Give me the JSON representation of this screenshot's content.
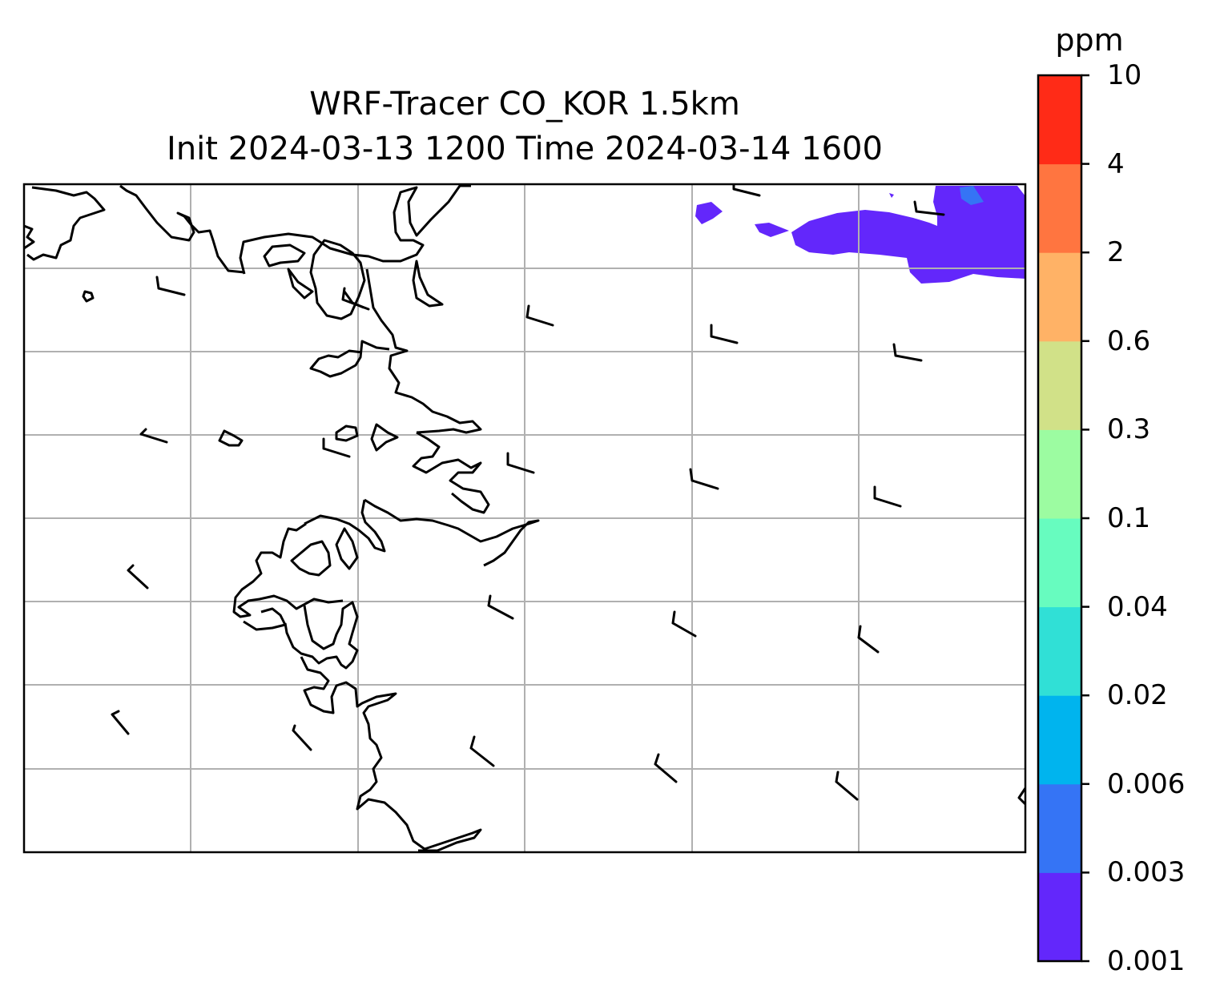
{
  "title": {
    "line1": "WRF-Tracer CO_KOR 1.5km",
    "line2": "Init 2024-03-13 1200 Time 2024-03-14 1600"
  },
  "colorbar": {
    "unit": "ppm",
    "levels": [
      "0.001",
      "0.003",
      "0.006",
      "0.02",
      "0.04",
      "0.1",
      "0.3",
      "0.6",
      "2",
      "4",
      "10"
    ],
    "colors": [
      "#6327fb",
      "#3574f5",
      "#00b4ee",
      "#30e0d6",
      "#67fcbf",
      "#9cfca1",
      "#d1e188",
      "#ffb266",
      "#ff7540",
      "#ff2b17"
    ]
  },
  "map": {
    "gridlines": true,
    "coastline_color": "#000000",
    "grid_color": "#b0b0b0",
    "plume_colors": [
      "#6327fb",
      "#3574f5"
    ]
  }
}
